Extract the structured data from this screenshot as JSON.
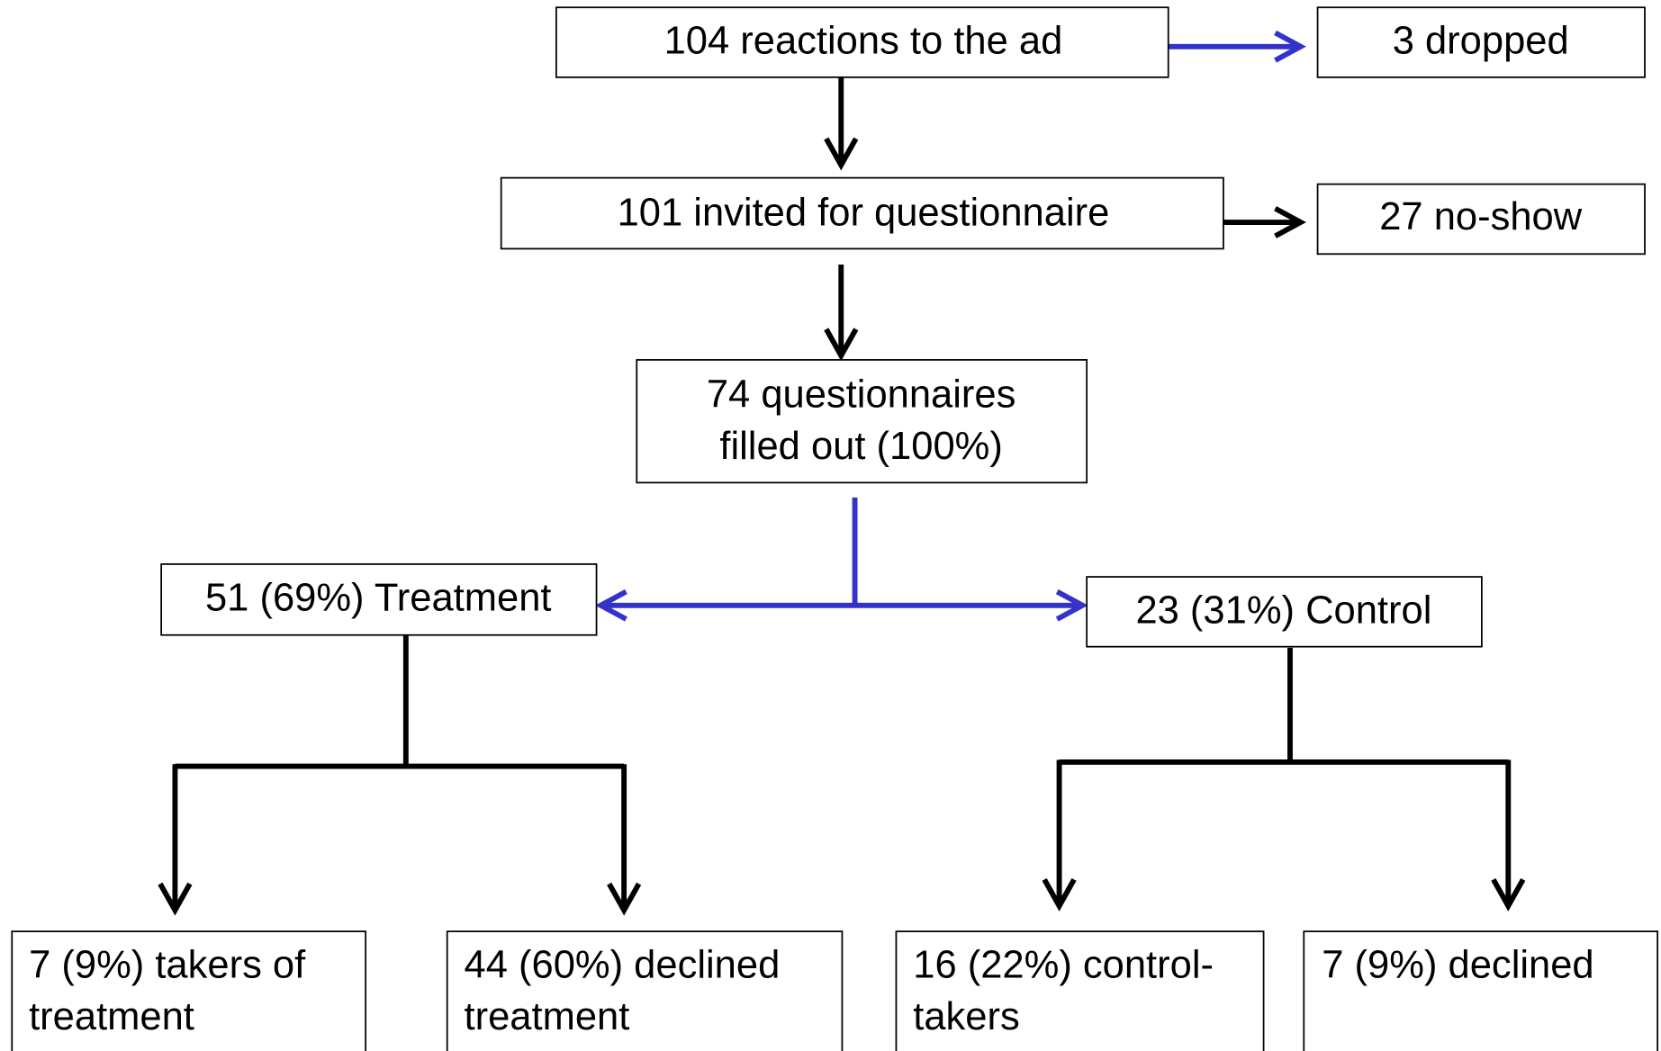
{
  "nodes": [
    {
      "lines": [
        "104 reactions to the ad"
      ]
    },
    {
      "lines": [
        "3 dropped"
      ]
    },
    {
      "lines": [
        "101 invited for questionnaire"
      ]
    },
    {
      "lines": [
        "27 no-show"
      ]
    },
    {
      "lines": [
        "74 questionnaires",
        "filled out (100%)"
      ]
    },
    {
      "lines": [
        "51 (69%) Treatment"
      ]
    },
    {
      "lines": [
        "23 (31%) Control"
      ]
    },
    {
      "lines": [
        "7 (9%) takers of",
        "treatment"
      ]
    },
    {
      "lines": [
        "44 (60%) declined",
        "treatment"
      ]
    },
    {
      "lines": [
        "16 (22%) control-",
        "takers"
      ]
    },
    {
      "lines": [
        "7 (9%) declined"
      ]
    }
  ]
}
